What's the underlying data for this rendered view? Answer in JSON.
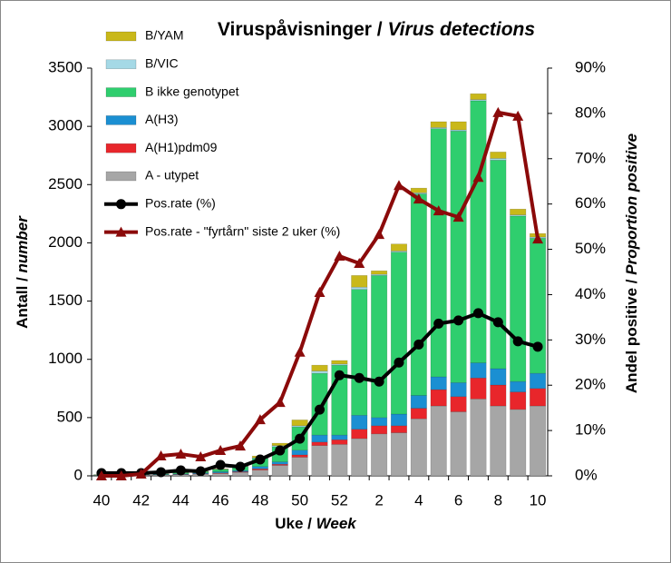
{
  "chart_data": {
    "type": "stacked-bar-line",
    "title": [
      "Viruspåvisninger /",
      "Virus detections"
    ],
    "y_label": [
      "Antall /",
      "number"
    ],
    "y2_label": [
      "Andel positive /",
      "Proportion positive"
    ],
    "x_label": [
      "Uke /",
      "Week"
    ],
    "categories": [
      "40",
      null,
      "42",
      null,
      "44",
      null,
      "46",
      null,
      "48",
      null,
      "50",
      null,
      "52",
      null,
      "2",
      null,
      "4",
      null,
      "6",
      null,
      "8",
      null,
      "10"
    ],
    "ylim": [
      0,
      3500
    ],
    "yticks": [
      0,
      500,
      1000,
      1500,
      2000,
      2500,
      3000,
      3500
    ],
    "y2lim": [
      0,
      90
    ],
    "y2ticks": [
      {
        "value": 0,
        "label": "0%"
      },
      {
        "value": 10,
        "label": "10%"
      },
      {
        "value": 20,
        "label": "20%"
      },
      {
        "value": 30,
        "label": "30%"
      },
      {
        "value": 40,
        "label": "40%"
      },
      {
        "value": 50,
        "label": "50%"
      },
      {
        "value": 60,
        "label": "60%"
      },
      {
        "value": 70,
        "label": "70%"
      },
      {
        "value": 80,
        "label": "80%"
      },
      {
        "value": 90,
        "label": "90%"
      }
    ],
    "series": [
      {
        "name": "A - utypet",
        "kind": "bar",
        "color": "#a6a6a6",
        "values": [
          4,
          4,
          6,
          8,
          10,
          15,
          20,
          30,
          50,
          90,
          160,
          260,
          270,
          320,
          360,
          370,
          490,
          600,
          550,
          660,
          600,
          570,
          600
        ]
      },
      {
        "name": "A(H1)pdm09",
        "kind": "bar",
        "color": "#e8262b",
        "values": [
          1,
          1,
          1,
          1,
          2,
          3,
          5,
          5,
          10,
          10,
          20,
          30,
          40,
          80,
          70,
          60,
          90,
          140,
          130,
          180,
          180,
          150,
          150
        ]
      },
      {
        "name": "A(H3)",
        "kind": "bar",
        "color": "#1b8fd2",
        "values": [
          1,
          1,
          2,
          3,
          5,
          7,
          10,
          10,
          20,
          20,
          40,
          60,
          40,
          120,
          70,
          100,
          110,
          110,
          120,
          130,
          140,
          90,
          130
        ]
      },
      {
        "name": "B ikke genotypet",
        "kind": "bar",
        "color": "#2fce6e",
        "values": [
          3,
          3,
          4,
          6,
          10,
          12,
          20,
          35,
          70,
          130,
          200,
          530,
          600,
          1080,
          1220,
          1390,
          1730,
          2130,
          2160,
          2250,
          1790,
          1420,
          1160
        ]
      },
      {
        "name": "B/VIC",
        "kind": "bar",
        "color": "#a5d9e6",
        "values": [
          0,
          0,
          1,
          1,
          1,
          1,
          2,
          3,
          5,
          10,
          10,
          20,
          10,
          20,
          10,
          10,
          10,
          10,
          10,
          10,
          15,
          10,
          10
        ]
      },
      {
        "name": "B/YAM",
        "kind": "bar",
        "color": "#c9b81a",
        "values": [
          1,
          1,
          1,
          1,
          2,
          2,
          3,
          7,
          15,
          20,
          50,
          50,
          30,
          100,
          30,
          60,
          40,
          50,
          70,
          50,
          55,
          50,
          30
        ]
      },
      {
        "name": "Pos.rate (%)",
        "kind": "line",
        "axis": "y2",
        "marker": "circle",
        "color": "#000000",
        "values": [
          0.6,
          0.6,
          0.6,
          0.8,
          1.2,
          1.0,
          2.4,
          2.0,
          3.6,
          5.6,
          8.2,
          14.6,
          22.2,
          21.6,
          20.8,
          25.0,
          29.0,
          33.6,
          34.3,
          35.9,
          33.9,
          29.7,
          28.5
        ]
      },
      {
        "name": "Pos.rate - \"fyrtårn\" siste 2 uker (%)",
        "kind": "line",
        "axis": "y2",
        "marker": "triangle",
        "color": "#8b0a0a",
        "values": [
          0,
          0,
          0.4,
          4.4,
          4.8,
          4.2,
          5.6,
          6.6,
          12.4,
          16.2,
          27.3,
          40.5,
          48.5,
          46.9,
          53.3,
          64.1,
          61.1,
          58.5,
          57.1,
          65.9,
          80.2,
          79.4,
          52.3
        ]
      }
    ]
  }
}
